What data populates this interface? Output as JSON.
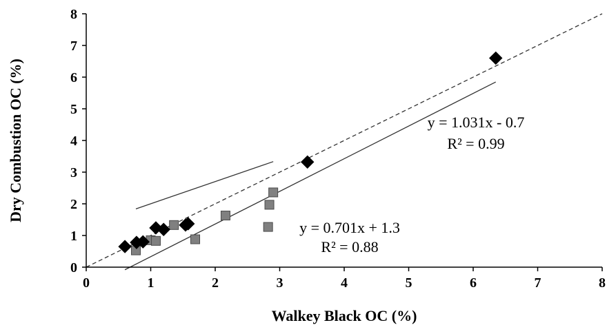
{
  "chart_data": {
    "type": "scatter",
    "xlabel": "Walkey Black OC (%)",
    "ylabel": "Dry Combustion OC (%)",
    "xlim": [
      0,
      8
    ],
    "ylim": [
      0,
      8
    ],
    "xticks": [
      0,
      1,
      2,
      3,
      4,
      5,
      6,
      7,
      8
    ],
    "yticks": [
      0,
      1,
      2,
      3,
      4,
      5,
      6,
      7,
      8
    ],
    "grid": false,
    "legend": "none",
    "series": [
      {
        "marker": "diamond",
        "color": "#000000",
        "points": [
          {
            "x": 0.6,
            "y": 0.65
          },
          {
            "x": 0.78,
            "y": 0.78
          },
          {
            "x": 0.88,
            "y": 0.8
          },
          {
            "x": 1.08,
            "y": 1.24
          },
          {
            "x": 1.2,
            "y": 1.19
          },
          {
            "x": 1.54,
            "y": 1.33
          },
          {
            "x": 1.58,
            "y": 1.37
          },
          {
            "x": 3.43,
            "y": 3.32
          },
          {
            "x": 6.35,
            "y": 6.6
          }
        ],
        "trendline": {
          "slope": 1.031,
          "intercept": -0.7,
          "x_range": [
            0.6,
            6.35
          ],
          "style": "solid",
          "color": "#333333"
        },
        "equation_text": "y = 1.031x - 0.7",
        "r2_text": "R² = 0.99",
        "equation_position": "upper-right"
      },
      {
        "marker": "square",
        "color": "#808080",
        "points": [
          {
            "x": 0.77,
            "y": 0.53
          },
          {
            "x": 1.0,
            "y": 0.85
          },
          {
            "x": 1.08,
            "y": 0.83
          },
          {
            "x": 1.36,
            "y": 1.33
          },
          {
            "x": 1.69,
            "y": 0.88
          },
          {
            "x": 2.16,
            "y": 1.63
          },
          {
            "x": 2.82,
            "y": 1.27
          },
          {
            "x": 2.84,
            "y": 1.97
          },
          {
            "x": 2.9,
            "y": 2.36
          }
        ],
        "trendline": {
          "slope": 0.701,
          "intercept": 1.3,
          "x_range": [
            0.77,
            2.9
          ],
          "style": "solid",
          "color": "#333333"
        },
        "equation_text": "y = 0.701x + 1.3",
        "r2_text": "R² = 0.88",
        "equation_position": "middle"
      }
    ],
    "reference_line": {
      "type": "1:1",
      "style": "dashed",
      "color": "#333333",
      "from": [
        0,
        0
      ],
      "to": [
        8,
        8
      ]
    }
  }
}
